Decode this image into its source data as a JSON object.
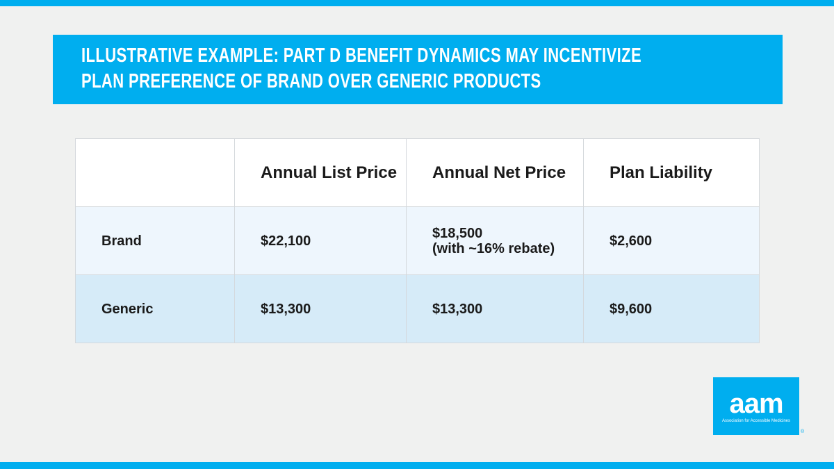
{
  "header": {
    "title_lines": [
      "ILLUSTRATIVE EXAMPLE: PART D BENEFIT DYNAMICS MAY INCENTIVIZE",
      "PLAN PREFERENCE OF BRAND OVER GENERIC PRODUCTS"
    ]
  },
  "table": {
    "columns": [
      "Annual List Price",
      "Annual Net Price",
      "Plan Liability"
    ],
    "rows": [
      {
        "label": "Brand",
        "cells": [
          "$22,100",
          "$18,500",
          "$2,600"
        ],
        "net_note": "(with ~16% rebate)"
      },
      {
        "label": "Generic",
        "cells": [
          "$13,300",
          "$13,300",
          "$9,600"
        ]
      }
    ]
  },
  "logo": {
    "mark": "aam",
    "tagline": "Association for Accessible Medicines",
    "registered": "®"
  }
}
